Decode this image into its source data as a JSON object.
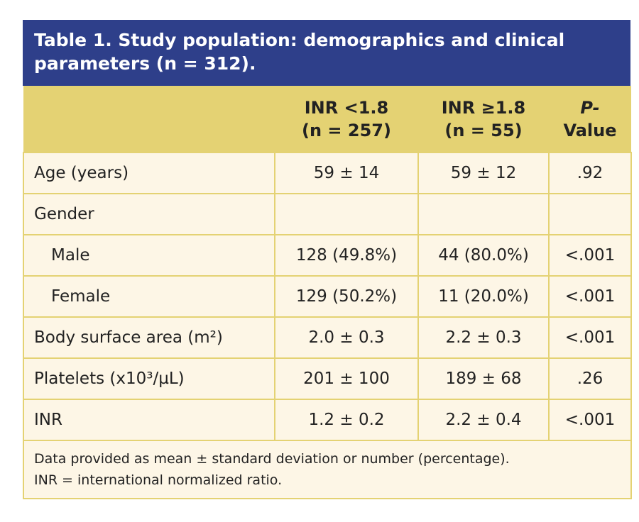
{
  "title": "Table 1. Study population: demographics and clinical parameters (n = 312).",
  "colors": {
    "title_bg": "#2e3f8a",
    "header_bg": "#e4d273",
    "cell_bg": "#fdf6e6"
  },
  "headers": [
    {
      "line1": "",
      "line2": ""
    },
    {
      "line1": "INR <1.8",
      "line2": "(n = 257)"
    },
    {
      "line1": "INR ≥1.8",
      "line2": "(n = 55)"
    },
    {
      "line1": "P-",
      "line2": "Value"
    }
  ],
  "rows": [
    {
      "label": "Age (years)",
      "c1": "59 ± 14",
      "c2": "59 ± 12",
      "p": ".92"
    },
    {
      "label": "Gender",
      "c1": "",
      "c2": "",
      "p": ""
    },
    {
      "label": "Male",
      "c1": "128 (49.8%)",
      "c2": "44 (80.0%)",
      "p": "<.001"
    },
    {
      "label": "Female",
      "c1": "129 (50.2%)",
      "c2": "11 (20.0%)",
      "p": "<.001"
    },
    {
      "label": "Body surface area (m²)",
      "c1": "2.0 ± 0.3",
      "c2": "2.2 ± 0.3",
      "p": "<.001"
    },
    {
      "label": "Platelets (x10³/µL)",
      "c1": "201 ± 100",
      "c2": "189 ± 68",
      "p": ".26"
    },
    {
      "label": "INR",
      "c1": "1.2 ± 0.2",
      "c2": "2.2 ± 0.4",
      "p": "<.001"
    }
  ],
  "footnote": {
    "line1": "Data provided as mean ± standard deviation or number (percentage).",
    "line2": "INR = international normalized ratio."
  }
}
